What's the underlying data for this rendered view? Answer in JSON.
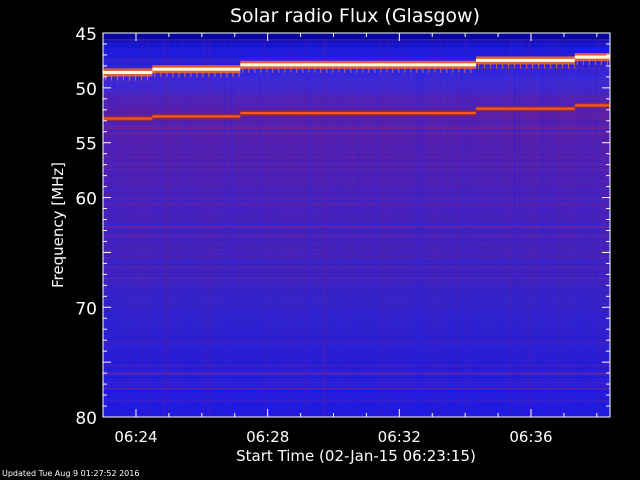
{
  "chart_data": {
    "type": "heatmap",
    "title": "Solar radio Flux (Glasgow)",
    "xlabel": "Start Time (02-Jan-15 06:23:15)",
    "ylabel": "Frequency [MHz]",
    "x_range_minutes": [
      6.3833,
      6.64
    ],
    "y_range": [
      45,
      80
    ],
    "y_scale": "linear",
    "x_ticks": [
      {
        "value": 6.4,
        "label": "06:24"
      },
      {
        "value": 6.4667,
        "label": "06:28"
      },
      {
        "value": 6.5333,
        "label": "06:32"
      },
      {
        "value": 6.6,
        "label": "06:36"
      }
    ],
    "y_ticks": [
      {
        "value": 45,
        "label": "45"
      },
      {
        "value": 50,
        "label": "50"
      },
      {
        "value": 55,
        "label": "55"
      },
      {
        "value": 60,
        "label": "60"
      },
      {
        "value": 70,
        "label": "70"
      },
      {
        "value": 80,
        "label": "80"
      }
    ],
    "colors": {
      "background_low": "#1a0fd0",
      "mid": "#5a20b0",
      "band_bright": "#ffffe0",
      "band_secondary": "#ff5a20"
    },
    "bands": [
      {
        "segments": [
          {
            "x0": 6.3833,
            "x1": 6.4083,
            "freq": 48.6
          },
          {
            "x0": 6.4083,
            "x1": 6.4528,
            "freq": 48.3
          },
          {
            "x0": 6.4528,
            "x1": 6.5722,
            "freq": 47.9
          },
          {
            "x0": 6.5722,
            "x1": 6.6222,
            "freq": 47.5
          },
          {
            "x0": 6.6222,
            "x1": 6.64,
            "freq": 47.2
          }
        ],
        "kind": "bright"
      },
      {
        "segments": [
          {
            "x0": 6.3833,
            "x1": 6.4083,
            "freq": 52.8
          },
          {
            "x0": 6.4083,
            "x1": 6.4528,
            "freq": 52.6
          },
          {
            "x0": 6.4528,
            "x1": 6.5722,
            "freq": 52.3
          },
          {
            "x0": 6.5722,
            "x1": 6.6222,
            "freq": 51.9
          },
          {
            "x0": 6.6222,
            "x1": 6.64,
            "freq": 51.6
          }
        ],
        "kind": "secondary"
      }
    ]
  },
  "footer": {
    "updated": "Updated Tue Aug  9 01:27:52 2016"
  }
}
